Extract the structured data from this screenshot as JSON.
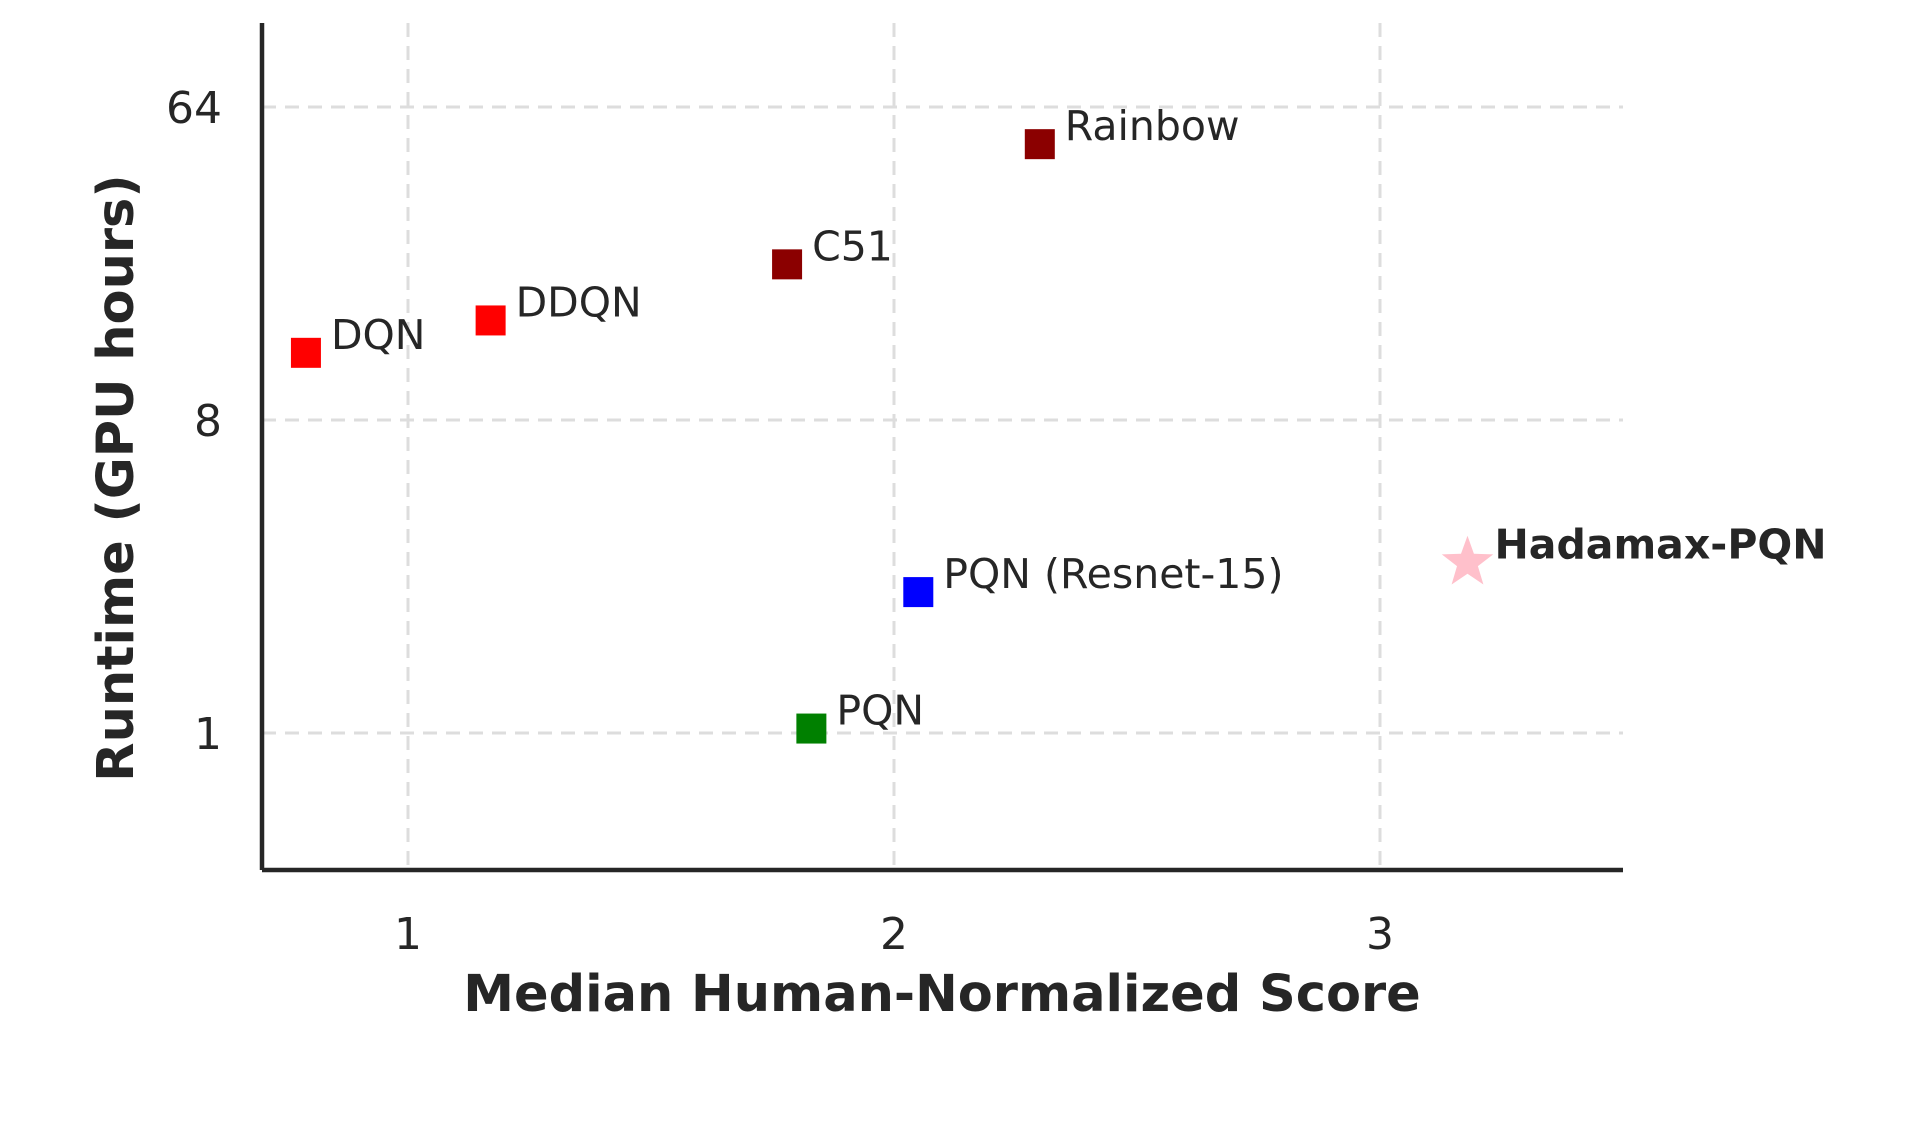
{
  "chart_data": {
    "type": "scatter",
    "title": "",
    "xlabel": "Median Human-Normalized Score",
    "ylabel": "Runtime (GPU hours)",
    "xlim": [
      0.7,
      3.5
    ],
    "ylim": [
      0.45,
      90
    ],
    "y_scale": "log2",
    "x_ticks": [
      {
        "value": 1,
        "label": "1"
      },
      {
        "value": 2,
        "label": "2"
      },
      {
        "value": 3,
        "label": "3"
      }
    ],
    "y_ticks": [
      {
        "value": 1,
        "label": "1"
      },
      {
        "value": 8,
        "label": "8"
      },
      {
        "value": 64,
        "label": "64"
      }
    ],
    "grid": true,
    "points": [
      {
        "label": "DQN",
        "x": 0.79,
        "y": 12.5,
        "color": "#ff0000",
        "marker": "square",
        "bold": false
      },
      {
        "label": "DDQN",
        "x": 1.17,
        "y": 15.5,
        "color": "#ff0000",
        "marker": "square",
        "bold": false
      },
      {
        "label": "C51",
        "x": 1.78,
        "y": 22.5,
        "color": "#8b0000",
        "marker": "square",
        "bold": false
      },
      {
        "label": "Rainbow",
        "x": 2.3,
        "y": 50,
        "color": "#8b0000",
        "marker": "square",
        "bold": false
      },
      {
        "label": "PQN (Resnet-15)",
        "x": 2.05,
        "y": 2.55,
        "color": "#0000ff",
        "marker": "square",
        "bold": false
      },
      {
        "label": "PQN",
        "x": 1.83,
        "y": 1.03,
        "color": "#008000",
        "marker": "square",
        "bold": false
      },
      {
        "label": "Hadamax-PQN",
        "x": 3.18,
        "y": 3.1,
        "color": "#ffc0cb",
        "marker": "star",
        "bold": true
      }
    ]
  }
}
